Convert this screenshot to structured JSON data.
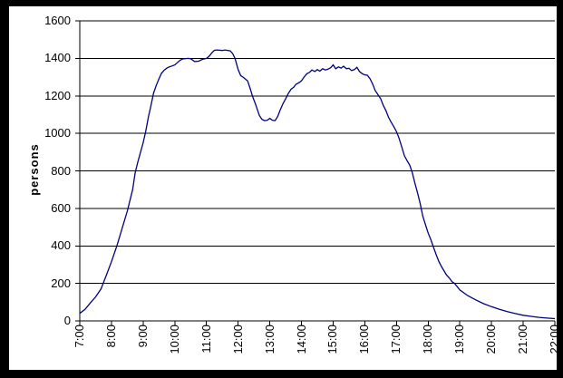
{
  "chart_data": {
    "type": "line",
    "title": "",
    "xlabel": "",
    "ylabel": "persons",
    "xlim": [
      7,
      22
    ],
    "ylim": [
      0,
      1600
    ],
    "y_ticks": [
      0,
      200,
      400,
      600,
      800,
      1000,
      1200,
      1400,
      1600
    ],
    "x_tick_labels": [
      "7:00",
      "8:00",
      "9:00",
      "10:00",
      "11:00",
      "12:00",
      "13:00",
      "14:00",
      "15:00",
      "16:00",
      "17:00",
      "18:00",
      "19:00",
      "20:00",
      "21:00",
      "22:00"
    ],
    "grid": "horizontal-only",
    "legend_position": "none",
    "colors": {
      "line": "#000080",
      "grid": "#000000",
      "axis": "#000000",
      "text": "#000000",
      "plot_background": "#ffffff",
      "frame_background": "#000000"
    },
    "series": [
      {
        "name": "persons",
        "x_unit": "hour_of_day",
        "points": [
          [
            7.0,
            40
          ],
          [
            7.17,
            62
          ],
          [
            7.33,
            95
          ],
          [
            7.5,
            128
          ],
          [
            7.67,
            170
          ],
          [
            7.83,
            240
          ],
          [
            8.0,
            315
          ],
          [
            8.17,
            400
          ],
          [
            8.33,
            490
          ],
          [
            8.5,
            585
          ],
          [
            8.67,
            700
          ],
          [
            8.75,
            790
          ],
          [
            8.83,
            845
          ],
          [
            9.0,
            950
          ],
          [
            9.08,
            1010
          ],
          [
            9.17,
            1090
          ],
          [
            9.25,
            1150
          ],
          [
            9.33,
            1215
          ],
          [
            9.42,
            1258
          ],
          [
            9.5,
            1290
          ],
          [
            9.58,
            1320
          ],
          [
            9.67,
            1338
          ],
          [
            9.75,
            1348
          ],
          [
            9.83,
            1355
          ],
          [
            9.92,
            1360
          ],
          [
            10.0,
            1365
          ],
          [
            10.17,
            1390
          ],
          [
            10.25,
            1397
          ],
          [
            10.42,
            1400
          ],
          [
            10.5,
            1398
          ],
          [
            10.63,
            1383
          ],
          [
            10.75,
            1385
          ],
          [
            10.88,
            1395
          ],
          [
            11.0,
            1400
          ],
          [
            11.08,
            1410
          ],
          [
            11.17,
            1430
          ],
          [
            11.25,
            1443
          ],
          [
            11.33,
            1445
          ],
          [
            11.5,
            1442
          ],
          [
            11.58,
            1445
          ],
          [
            11.75,
            1440
          ],
          [
            11.83,
            1425
          ],
          [
            11.9,
            1400
          ],
          [
            12.0,
            1340
          ],
          [
            12.08,
            1308
          ],
          [
            12.17,
            1298
          ],
          [
            12.3,
            1280
          ],
          [
            12.38,
            1240
          ],
          [
            12.45,
            1200
          ],
          [
            12.55,
            1155
          ],
          [
            12.67,
            1095
          ],
          [
            12.75,
            1075
          ],
          [
            12.83,
            1068
          ],
          [
            12.92,
            1070
          ],
          [
            13.0,
            1080
          ],
          [
            13.08,
            1070
          ],
          [
            13.17,
            1068
          ],
          [
            13.25,
            1090
          ],
          [
            13.33,
            1125
          ],
          [
            13.42,
            1160
          ],
          [
            13.5,
            1185
          ],
          [
            13.58,
            1212
          ],
          [
            13.67,
            1235
          ],
          [
            13.75,
            1245
          ],
          [
            13.83,
            1262
          ],
          [
            13.92,
            1270
          ],
          [
            14.0,
            1280
          ],
          [
            14.08,
            1300
          ],
          [
            14.17,
            1318
          ],
          [
            14.25,
            1325
          ],
          [
            14.33,
            1338
          ],
          [
            14.42,
            1330
          ],
          [
            14.5,
            1340
          ],
          [
            14.58,
            1332
          ],
          [
            14.67,
            1345
          ],
          [
            14.75,
            1338
          ],
          [
            14.83,
            1342
          ],
          [
            14.92,
            1350
          ],
          [
            15.0,
            1365
          ],
          [
            15.08,
            1345
          ],
          [
            15.17,
            1355
          ],
          [
            15.25,
            1348
          ],
          [
            15.33,
            1358
          ],
          [
            15.42,
            1345
          ],
          [
            15.5,
            1347
          ],
          [
            15.58,
            1335
          ],
          [
            15.67,
            1340
          ],
          [
            15.75,
            1352
          ],
          [
            15.83,
            1330
          ],
          [
            15.92,
            1318
          ],
          [
            16.0,
            1312
          ],
          [
            16.08,
            1310
          ],
          [
            16.17,
            1290
          ],
          [
            16.25,
            1262
          ],
          [
            16.33,
            1228
          ],
          [
            16.42,
            1205
          ],
          [
            16.5,
            1185
          ],
          [
            16.58,
            1150
          ],
          [
            16.67,
            1120
          ],
          [
            16.75,
            1085
          ],
          [
            16.83,
            1060
          ],
          [
            16.92,
            1035
          ],
          [
            17.0,
            1010
          ],
          [
            17.08,
            975
          ],
          [
            17.17,
            925
          ],
          [
            17.25,
            880
          ],
          [
            17.33,
            855
          ],
          [
            17.42,
            830
          ],
          [
            17.5,
            790
          ],
          [
            17.58,
            735
          ],
          [
            17.67,
            680
          ],
          [
            17.75,
            625
          ],
          [
            17.83,
            560
          ],
          [
            17.92,
            510
          ],
          [
            18.0,
            468
          ],
          [
            18.08,
            435
          ],
          [
            18.17,
            392
          ],
          [
            18.25,
            355
          ],
          [
            18.33,
            320
          ],
          [
            18.42,
            290
          ],
          [
            18.5,
            268
          ],
          [
            18.58,
            245
          ],
          [
            18.67,
            228
          ],
          [
            18.75,
            210
          ],
          [
            18.83,
            200
          ],
          [
            18.92,
            182
          ],
          [
            19.0,
            165
          ],
          [
            19.25,
            135
          ],
          [
            19.5,
            112
          ],
          [
            19.75,
            92
          ],
          [
            20.0,
            76
          ],
          [
            20.25,
            62
          ],
          [
            20.5,
            50
          ],
          [
            20.75,
            39
          ],
          [
            21.0,
            30
          ],
          [
            21.25,
            24
          ],
          [
            21.5,
            19
          ],
          [
            21.75,
            15
          ],
          [
            22.0,
            12
          ]
        ]
      }
    ]
  }
}
